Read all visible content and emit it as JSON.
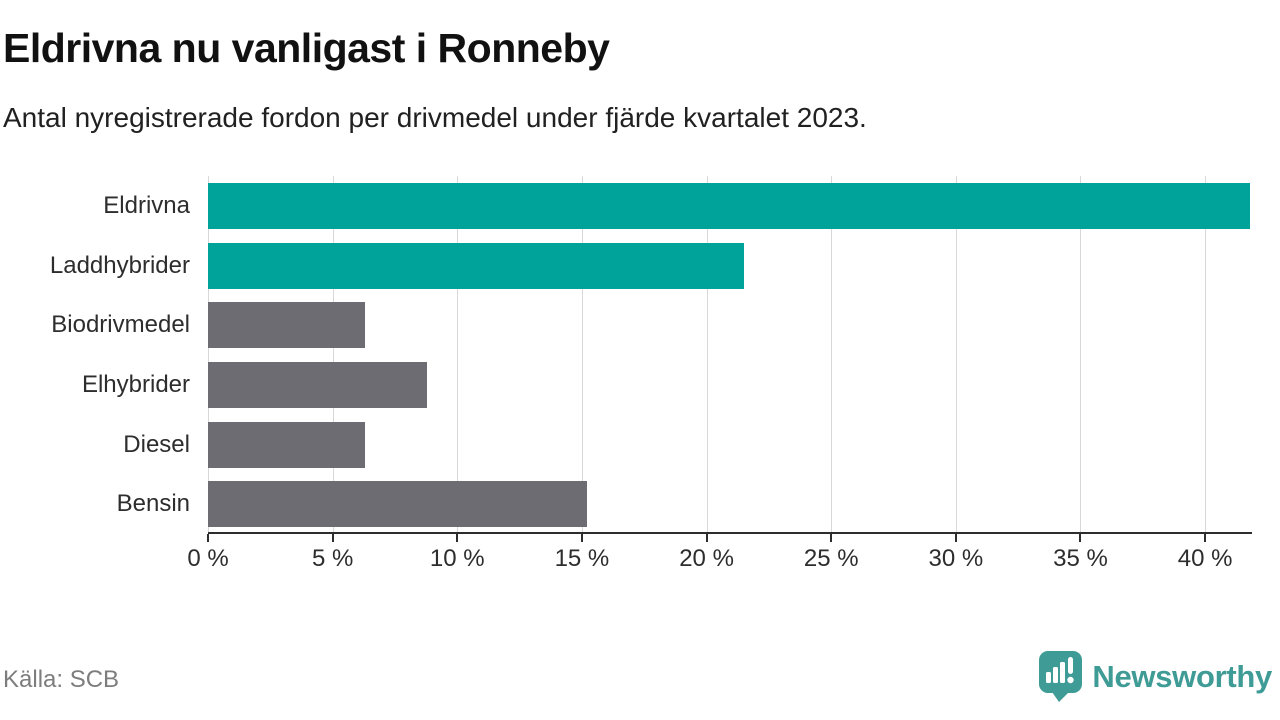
{
  "header": {
    "title": "Eldrivna nu vanligast i Ronneby",
    "subtitle": "Antal nyregistrerade fordon per drivmedel under fjärde kvartalet 2023."
  },
  "footer": {
    "source": "Källa: SCB",
    "brand_name": "Newsworthy"
  },
  "colors": {
    "accent_teal": "#00a39a",
    "muted_gray": "#6c6c72",
    "brand_teal": "#3f9b95",
    "gridline": "#d8d8d8",
    "axis": "#2d2d2d"
  },
  "chart_data": {
    "type": "bar",
    "orientation": "horizontal",
    "title": "Eldrivna nu vanligast i Ronneby",
    "subtitle": "Antal nyregistrerade fordon per drivmedel under fjärde kvartalet 2023.",
    "categories": [
      "Eldrivna",
      "Laddhybrider",
      "Biodrivmedel",
      "Elhybrider",
      "Diesel",
      "Bensin"
    ],
    "values": [
      41.8,
      21.5,
      6.3,
      8.8,
      6.3,
      15.2
    ],
    "bar_colors": [
      "#00a39a",
      "#00a39a",
      "#6c6c72",
      "#6c6c72",
      "#6c6c72",
      "#6c6c72"
    ],
    "unit": "%",
    "xlim": [
      0,
      41.8
    ],
    "xticks": [
      0,
      5,
      10,
      15,
      20,
      25,
      30,
      35,
      40
    ],
    "xtick_labels": [
      "0 %",
      "5 %",
      "10 %",
      "15 %",
      "20 %",
      "25 %",
      "30 %",
      "35 %",
      "40 %"
    ],
    "grid": true,
    "legend": false,
    "source": "Källa: SCB"
  }
}
